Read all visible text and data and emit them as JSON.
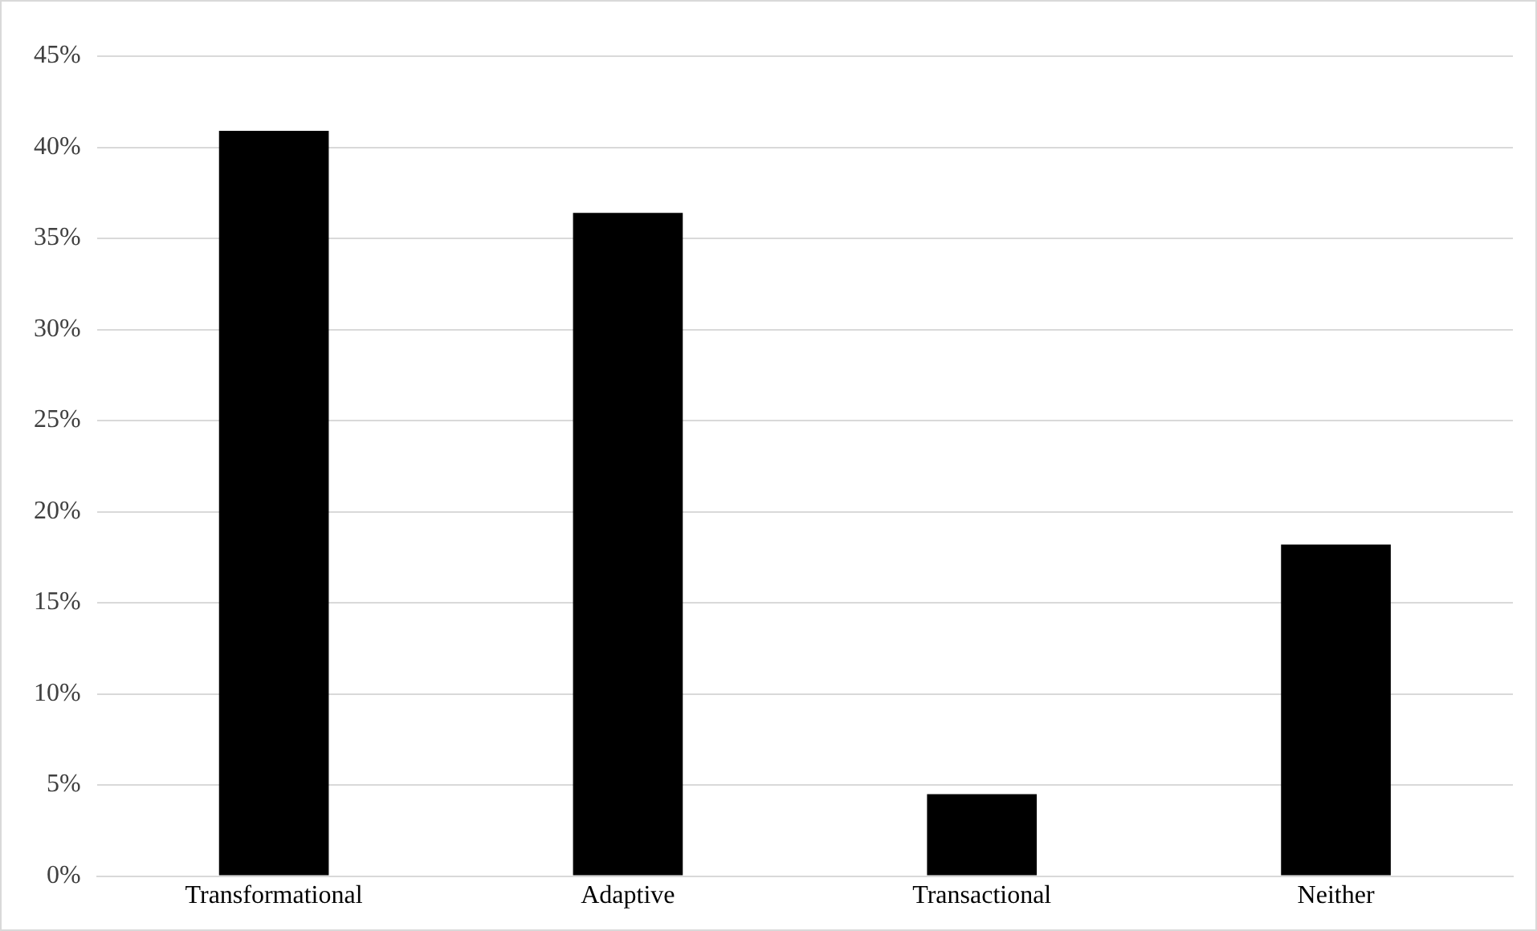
{
  "chart_data": {
    "type": "bar",
    "categories": [
      "Transformational",
      "Adaptive",
      "Transactional",
      "Neither"
    ],
    "values": [
      40.9,
      36.4,
      4.5,
      18.2
    ],
    "color": "#000000",
    "ylim": [
      0,
      45
    ],
    "yticks": [
      {
        "value": 0,
        "label": "0%"
      },
      {
        "value": 5,
        "label": "5%"
      },
      {
        "value": 10,
        "label": "10%"
      },
      {
        "value": 15,
        "label": "15%"
      },
      {
        "value": 20,
        "label": "20%"
      },
      {
        "value": 25,
        "label": "25%"
      },
      {
        "value": 30,
        "label": "30%"
      },
      {
        "value": 35,
        "label": "35%"
      },
      {
        "value": 40,
        "label": "40%"
      },
      {
        "value": 45,
        "label": "45%"
      }
    ],
    "grid": "y",
    "legend": false
  }
}
